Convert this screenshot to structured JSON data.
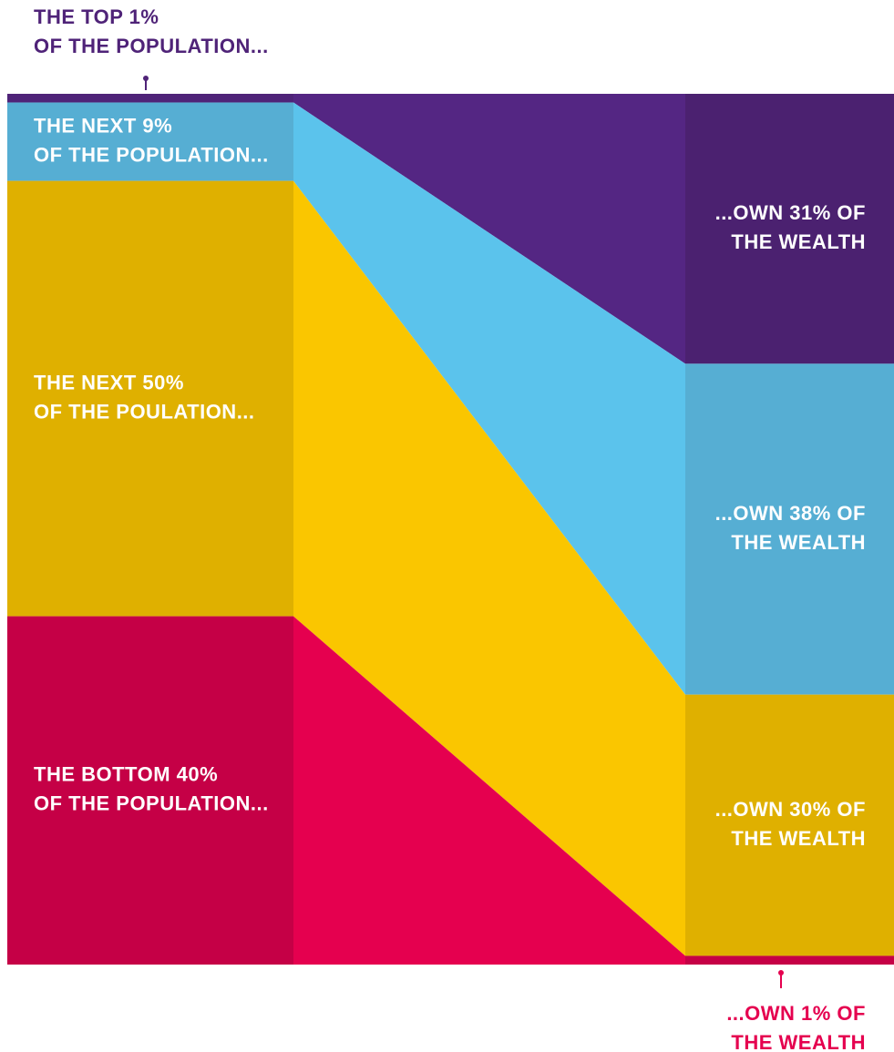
{
  "chart_data": {
    "type": "flow",
    "population": {
      "values": [
        1,
        9,
        50,
        40
      ],
      "value_labels": [
        [
          "THE TOP 1%",
          "OF THE POPULATION..."
        ],
        [
          "THE NEXT 9%",
          "OF THE POPULATION..."
        ],
        [
          "THE NEXT 50%",
          "OF THE POULATION..."
        ],
        [
          "THE BOTTOM 40%",
          "OF THE POPULATION..."
        ]
      ],
      "colors": [
        "#4f2378",
        "#56aed3",
        "#dfb000",
        "#c50046"
      ]
    },
    "wealth": {
      "values": [
        31,
        38,
        30,
        1
      ],
      "value_labels": [
        [
          "...OWN 31% OF",
          "THE WEALTH"
        ],
        [
          "...OWN 38% OF",
          "THE WEALTH"
        ],
        [
          "...OWN 30% OF",
          "THE WEALTH"
        ],
        [
          "...OWN 1% OF",
          "THE WEALTH"
        ]
      ],
      "colors": [
        "#4b2170",
        "#56aed3",
        "#dfb000",
        "#c50046"
      ]
    },
    "flow_colors": [
      "#542683",
      "#5bc3ec",
      "#fac600",
      "#e5004f"
    ]
  }
}
